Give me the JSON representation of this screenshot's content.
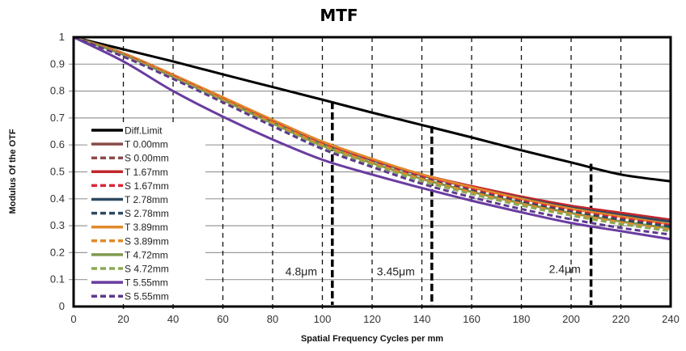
{
  "chart_data": {
    "type": "line",
    "title": "MTF",
    "xlabel": "Spatial Frequency Cycles per mm",
    "ylabel": "Modulus Of  the OTF",
    "xlim": [
      0,
      240
    ],
    "ylim": [
      0,
      1
    ],
    "x_ticks": [
      "0",
      "20",
      "40",
      "60",
      "80",
      "100",
      "120",
      "140",
      "160",
      "180",
      "200",
      "220",
      "240"
    ],
    "y_ticks": [
      "0",
      "0.1",
      "0.2",
      "0.3",
      "0.4",
      "0.5",
      "0.6",
      "0.7",
      "0.8",
      "0.9",
      "1"
    ],
    "grid": "horizontal solid, vertical dashed",
    "legend_position": "left-center",
    "x": [
      0,
      20,
      40,
      60,
      80,
      100,
      120,
      140,
      160,
      180,
      200,
      220,
      240
    ],
    "series": [
      {
        "name": "Diff.Limit",
        "color": "#000000",
        "dash": false,
        "values": [
          1.0,
          0.955,
          0.91,
          0.862,
          0.815,
          0.768,
          0.72,
          0.674,
          0.628,
          0.58,
          0.535,
          0.49,
          0.465
        ]
      },
      {
        "name": "T 0.00mm",
        "color": "#8B4A4A",
        "dash": false,
        "values": [
          1.0,
          0.94,
          0.86,
          0.775,
          0.69,
          0.61,
          0.545,
          0.49,
          0.445,
          0.405,
          0.37,
          0.345,
          0.32
        ]
      },
      {
        "name": "S 0.00mm",
        "color": "#8B4A4A",
        "dash": true,
        "values": [
          1.0,
          0.935,
          0.855,
          0.77,
          0.685,
          0.603,
          0.538,
          0.48,
          0.433,
          0.39,
          0.355,
          0.325,
          0.3
        ]
      },
      {
        "name": "T 1.67mm",
        "color": "#C0272D",
        "dash": false,
        "values": [
          1.0,
          0.94,
          0.86,
          0.776,
          0.692,
          0.612,
          0.547,
          0.49,
          0.447,
          0.408,
          0.374,
          0.348,
          0.322
        ]
      },
      {
        "name": "S 1.67mm",
        "color": "#D9263A",
        "dash": true,
        "values": [
          1.0,
          0.935,
          0.855,
          0.77,
          0.686,
          0.604,
          0.54,
          0.482,
          0.435,
          0.393,
          0.357,
          0.328,
          0.302
        ]
      },
      {
        "name": "T 2.78mm",
        "color": "#2E4A62",
        "dash": false,
        "values": [
          1.0,
          0.94,
          0.858,
          0.774,
          0.69,
          0.608,
          0.544,
          0.487,
          0.442,
          0.402,
          0.367,
          0.34,
          0.315
        ]
      },
      {
        "name": "S 2.78mm",
        "color": "#2E4A62",
        "dash": true,
        "values": [
          1.0,
          0.933,
          0.852,
          0.767,
          0.682,
          0.6,
          0.535,
          0.477,
          0.43,
          0.388,
          0.352,
          0.322,
          0.297
        ]
      },
      {
        "name": "T 3.89mm",
        "color": "#E08A2C",
        "dash": false,
        "values": [
          1.0,
          0.94,
          0.86,
          0.777,
          0.693,
          0.612,
          0.548,
          0.49,
          0.443,
          0.4,
          0.363,
          0.334,
          0.305
        ]
      },
      {
        "name": "S 3.89mm",
        "color": "#E08A2C",
        "dash": true,
        "values": [
          1.0,
          0.933,
          0.853,
          0.768,
          0.683,
          0.6,
          0.534,
          0.474,
          0.425,
          0.382,
          0.345,
          0.313,
          0.285
        ]
      },
      {
        "name": "T 4.72mm",
        "color": "#7E9A4C",
        "dash": false,
        "values": [
          1.0,
          0.935,
          0.852,
          0.767,
          0.68,
          0.598,
          0.533,
          0.474,
          0.426,
          0.384,
          0.347,
          0.316,
          0.29
        ]
      },
      {
        "name": "S 4.72mm",
        "color": "#8CA852",
        "dash": true,
        "values": [
          1.0,
          0.93,
          0.848,
          0.762,
          0.675,
          0.592,
          0.526,
          0.466,
          0.418,
          0.375,
          0.338,
          0.306,
          0.28
        ]
      },
      {
        "name": "T 5.55mm",
        "color": "#6A3CA0",
        "dash": false,
        "values": [
          1.0,
          0.91,
          0.8,
          0.705,
          0.62,
          0.545,
          0.49,
          0.44,
          0.393,
          0.35,
          0.31,
          0.28,
          0.25
        ]
      },
      {
        "name": "S 5.55mm",
        "color": "#5E3A8C",
        "dash": true,
        "values": [
          1.0,
          0.928,
          0.845,
          0.758,
          0.67,
          0.585,
          0.518,
          0.456,
          0.406,
          0.362,
          0.324,
          0.292,
          0.267
        ]
      }
    ],
    "markers": [
      {
        "label": "4.8μm",
        "x": 104,
        "y_top": 0.76
      },
      {
        "label": "3.45μm",
        "x": 144,
        "y_top": 0.67
      },
      {
        "label": "2.4μm",
        "x": 208,
        "y_top": 0.53
      }
    ]
  }
}
